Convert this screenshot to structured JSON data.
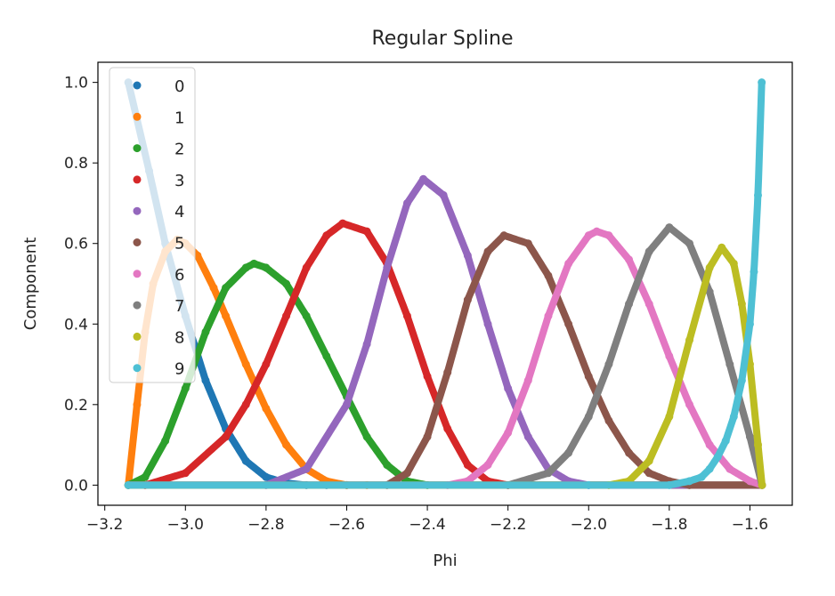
{
  "chart_data": {
    "type": "scatter",
    "title": "Regular Spline",
    "xlabel": "Phi",
    "ylabel": "Component",
    "xlim": [
      -3.217,
      -1.495
    ],
    "ylim": [
      -0.05,
      1.05
    ],
    "xticks": [
      -3.2,
      -3.0,
      -2.8,
      -2.6,
      -2.4,
      -2.2,
      -2.0,
      -1.8,
      -1.6
    ],
    "xtick_labels": [
      "−3.2",
      "−3.0",
      "−2.8",
      "−2.6",
      "−2.4",
      "−2.2",
      "−2.0",
      "−1.8",
      "−1.6"
    ],
    "yticks": [
      0.0,
      0.2,
      0.4,
      0.6,
      0.8,
      1.0
    ],
    "ytick_labels": [
      "0.0",
      "0.2",
      "0.4",
      "0.6",
      "0.8",
      "1.0"
    ],
    "grid": false,
    "legend_position": "top-left",
    "x_range": [
      -3.1416,
      -1.5708
    ],
    "series": [
      {
        "name": "0",
        "color": "#1f77b4",
        "x": [
          -3.1416,
          -3.09,
          -3.05,
          -3.0,
          -2.95,
          -2.9,
          -2.85,
          -2.8,
          -2.75,
          -2.7,
          -2.65,
          -2.6
        ],
        "y": [
          1.0,
          0.78,
          0.6,
          0.42,
          0.26,
          0.14,
          0.06,
          0.02,
          0.005,
          0.0,
          0.0,
          0.0
        ]
      },
      {
        "name": "1",
        "color": "#ff7f0e",
        "x": [
          -3.1416,
          -3.12,
          -3.1,
          -3.08,
          -3.05,
          -3.02,
          -3.0,
          -2.97,
          -2.93,
          -2.9,
          -2.85,
          -2.8,
          -2.75,
          -2.7,
          -2.65,
          -2.6,
          -2.55
        ],
        "y": [
          0.0,
          0.2,
          0.38,
          0.5,
          0.58,
          0.61,
          0.6,
          0.57,
          0.49,
          0.42,
          0.3,
          0.19,
          0.1,
          0.04,
          0.01,
          0.0,
          0.0
        ]
      },
      {
        "name": "2",
        "color": "#2ca02c",
        "x": [
          -3.1416,
          -3.1,
          -3.05,
          -3.0,
          -2.95,
          -2.9,
          -2.85,
          -2.83,
          -2.8,
          -2.75,
          -2.7,
          -2.65,
          -2.6,
          -2.55,
          -2.5,
          -2.45,
          -2.4
        ],
        "y": [
          0.0,
          0.02,
          0.11,
          0.24,
          0.38,
          0.49,
          0.54,
          0.55,
          0.54,
          0.5,
          0.42,
          0.32,
          0.22,
          0.12,
          0.05,
          0.01,
          0.0
        ]
      },
      {
        "name": "3",
        "color": "#d62728",
        "x": [
          -3.1,
          -3.0,
          -2.9,
          -2.85,
          -2.8,
          -2.75,
          -2.7,
          -2.65,
          -2.61,
          -2.55,
          -2.5,
          -2.45,
          -2.4,
          -2.35,
          -2.3,
          -2.25,
          -2.2
        ],
        "y": [
          0.0,
          0.03,
          0.12,
          0.2,
          0.3,
          0.42,
          0.54,
          0.62,
          0.65,
          0.63,
          0.55,
          0.42,
          0.27,
          0.14,
          0.05,
          0.01,
          0.0
        ]
      },
      {
        "name": "4",
        "color": "#9467bd",
        "x": [
          -2.8,
          -2.7,
          -2.6,
          -2.55,
          -2.5,
          -2.45,
          -2.41,
          -2.36,
          -2.3,
          -2.25,
          -2.2,
          -2.15,
          -2.1,
          -2.05,
          -2.0
        ],
        "y": [
          0.0,
          0.04,
          0.2,
          0.35,
          0.54,
          0.7,
          0.76,
          0.72,
          0.57,
          0.4,
          0.24,
          0.12,
          0.04,
          0.01,
          0.0
        ]
      },
      {
        "name": "5",
        "color": "#8c564b",
        "x": [
          -2.5,
          -2.45,
          -2.4,
          -2.35,
          -2.3,
          -2.25,
          -2.21,
          -2.15,
          -2.1,
          -2.05,
          -2.0,
          -1.95,
          -1.9,
          -1.85,
          -1.8,
          -1.75
        ],
        "y": [
          0.0,
          0.03,
          0.12,
          0.28,
          0.46,
          0.58,
          0.62,
          0.6,
          0.52,
          0.4,
          0.27,
          0.16,
          0.08,
          0.03,
          0.01,
          0.0
        ]
      },
      {
        "name": "6",
        "color": "#e377c2",
        "x": [
          -2.35,
          -2.3,
          -2.25,
          -2.2,
          -2.15,
          -2.1,
          -2.05,
          -2.0,
          -1.98,
          -1.95,
          -1.9,
          -1.85,
          -1.8,
          -1.75,
          -1.7,
          -1.65,
          -1.6,
          -1.57
        ],
        "y": [
          0.0,
          0.01,
          0.05,
          0.13,
          0.26,
          0.42,
          0.55,
          0.62,
          0.63,
          0.62,
          0.56,
          0.45,
          0.32,
          0.2,
          0.1,
          0.04,
          0.01,
          0.0
        ]
      },
      {
        "name": "7",
        "color": "#7f7f7f",
        "x": [
          -2.2,
          -2.1,
          -2.05,
          -2.0,
          -1.95,
          -1.9,
          -1.85,
          -1.8,
          -1.75,
          -1.7,
          -1.65,
          -1.6,
          -1.57
        ],
        "y": [
          0.0,
          0.03,
          0.08,
          0.17,
          0.3,
          0.45,
          0.58,
          0.64,
          0.6,
          0.48,
          0.3,
          0.12,
          0.0
        ]
      },
      {
        "name": "8",
        "color": "#bcbd22",
        "x": [
          -1.95,
          -1.9,
          -1.85,
          -1.8,
          -1.75,
          -1.7,
          -1.67,
          -1.64,
          -1.62,
          -1.6,
          -1.58,
          -1.57
        ],
        "y": [
          0.0,
          0.01,
          0.06,
          0.17,
          0.36,
          0.54,
          0.59,
          0.55,
          0.45,
          0.3,
          0.1,
          0.0
        ]
      },
      {
        "name": "9",
        "color": "#4ec0d4",
        "x": [
          -3.1416,
          -2.0,
          -1.8,
          -1.75,
          -1.72,
          -1.7,
          -1.68,
          -1.66,
          -1.64,
          -1.62,
          -1.6,
          -1.59,
          -1.58,
          -1.5708
        ],
        "y": [
          0.0,
          0.0,
          0.0,
          0.01,
          0.02,
          0.04,
          0.07,
          0.11,
          0.17,
          0.26,
          0.4,
          0.53,
          0.72,
          1.0
        ]
      }
    ]
  }
}
